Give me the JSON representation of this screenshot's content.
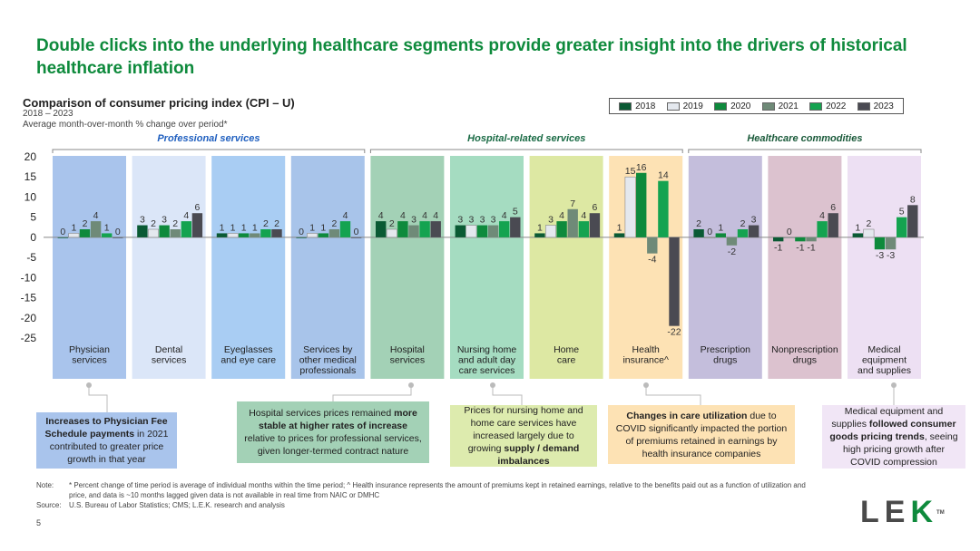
{
  "headline": "Double clicks into the underlying healthcare segments provide greater insight into the drivers of historical healthcare inflation",
  "chart_title": "Comparison of consumer pricing index (CPI – U)",
  "chart_subtitle1": "2018 – 2023",
  "chart_subtitle2": "Average month-over-month % change over period*",
  "group_labels": {
    "professional": "Professional services",
    "hospital": "Hospital-related services",
    "commodities": "Healthcare commodities"
  },
  "colors": {
    "professional_label": "#1f5fbf",
    "hospital_label": "#1a6b45",
    "commodities_label": "#1a5a3a"
  },
  "chart_data": {
    "type": "bar",
    "title": "Comparison of consumer pricing index (CPI – U)",
    "ylim": [
      -25,
      20
    ],
    "yticks": [
      20,
      15,
      10,
      5,
      0,
      -5,
      -10,
      -15,
      -20,
      -25
    ],
    "ytick_labels": [
      "20",
      "15",
      "10",
      "5",
      "0",
      "-5",
      "-10",
      "-15",
      "-20",
      "-25"
    ],
    "grid": false,
    "legend_position": "top-right",
    "categories": [
      "Physician services",
      "Dental services",
      "Eyeglasses and eye care",
      "Services by other medical professionals",
      "Hospital services",
      "Nursing home and adult day care services",
      "Home care",
      "Health insurance^",
      "Prescription drugs",
      "Nonprescription drugs",
      "Medical equipment and supplies"
    ],
    "category_labels": [
      [
        "Physician",
        "services"
      ],
      [
        "Dental",
        "services"
      ],
      [
        "Eyeglasses",
        "and eye care"
      ],
      [
        "Services by",
        "other medical",
        "professionals"
      ],
      [
        "Hospital",
        "services"
      ],
      [
        "Nursing home",
        "and adult day",
        "care services"
      ],
      [
        "Home",
        "care"
      ],
      [
        "Health",
        "insurance^"
      ],
      [
        "Prescription",
        "drugs"
      ],
      [
        "Nonprescription",
        "drugs"
      ],
      [
        "Medical",
        "equipment",
        "and supplies"
      ]
    ],
    "category_backgrounds": [
      "#a9c4ec",
      "#dbe6f8",
      "#a9cdf3",
      "#a8c4ea",
      "#a3d1b6",
      "#a5dcc1",
      "#dde8a3",
      "#fde2b4",
      "#c4bedc",
      "#dcc2cf",
      "#ede0f3"
    ],
    "series": [
      {
        "name": "2018",
        "color": "#0a5a34",
        "values": [
          0,
          3,
          1,
          0,
          4,
          3,
          1,
          1,
          2,
          -1,
          1
        ]
      },
      {
        "name": "2019",
        "color": "#e4e8ee",
        "values": [
          1,
          2,
          1,
          1,
          2,
          3,
          3,
          15,
          0,
          0,
          2
        ]
      },
      {
        "name": "2020",
        "color": "#0e8a3c",
        "values": [
          2,
          3,
          1,
          1,
          4,
          3,
          4,
          16,
          1,
          -1,
          -3
        ]
      },
      {
        "name": "2021",
        "color": "#6f8a78",
        "values": [
          4,
          2,
          1,
          2,
          3,
          3,
          7,
          -4,
          -2,
          -1,
          -3
        ]
      },
      {
        "name": "2022",
        "color": "#14a350",
        "values": [
          1,
          4,
          2,
          4,
          4,
          4,
          4,
          14,
          2,
          4,
          5
        ]
      },
      {
        "name": "2023",
        "color": "#4a4a52",
        "values": [
          0,
          6,
          2,
          0,
          4,
          5,
          6,
          -22,
          3,
          6,
          8
        ]
      }
    ]
  },
  "callouts": [
    {
      "parts": [
        {
          "t": "Increases to Physician Fee Schedule payments",
          "b": true
        },
        {
          "t": " in 2021 contributed to greater price growth in that year",
          "b": false
        }
      ],
      "bg": "#a9c4ec"
    },
    {
      "parts": [
        {
          "t": "Hospital services prices remained ",
          "b": false
        },
        {
          "t": "more stable at higher rates of increase",
          "b": true
        },
        {
          "t": " relative to prices for professional services, given longer-termed contract nature",
          "b": false
        }
      ],
      "bg": "#a3d1b6"
    },
    {
      "parts": [
        {
          "t": "Prices for nursing home and home care services have increased largely due to growing ",
          "b": false
        },
        {
          "t": "supply / demand imbalances",
          "b": true
        }
      ],
      "bg": "#ddebae"
    },
    {
      "parts": [
        {
          "t": "Changes in care utilization",
          "b": true
        },
        {
          "t": " due to COVID significantly impacted the portion of premiums retained in earnings by health insurance companies",
          "b": false
        }
      ],
      "bg": "#fde2b4"
    },
    {
      "parts": [
        {
          "t": "Medical equipment and supplies ",
          "b": false
        },
        {
          "t": "followed consumer goods pricing trends",
          "b": true
        },
        {
          "t": ", seeing high pricing growth after COVID compression",
          "b": false
        }
      ],
      "bg": "#f1e6f6"
    }
  ],
  "note_label": "Note:",
  "note_text": "* Percent change of time period is average of individual months within the time period; ^ Health insurance represents the amount of premiums kept in retained earnings, relative to the benefits paid out as a function of utilization and price, and data is ~10 months lagged given data is not available in real time from NAIC or DMHC",
  "source_label": "Source:",
  "source_text": "U.S. Bureau of Labor Statistics; CMS; L.E.K. research and analysis",
  "page_number": "5",
  "logo": {
    "l": "L",
    "e": "E",
    "k": "K",
    "tm": "TM"
  }
}
